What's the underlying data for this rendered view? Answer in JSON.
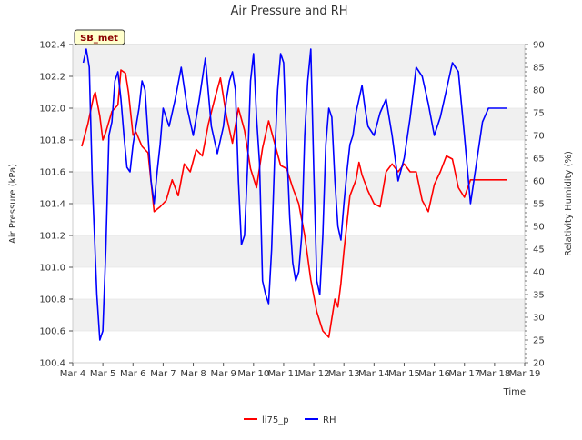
{
  "chart_data": {
    "type": "line",
    "title": "Air Pressure and RH",
    "tag_label": "SB_met",
    "xlabel": "Time",
    "ylabel_left": "Air Pressure (kPa)",
    "ylabel_right": "Relativity Humidity (%)",
    "x_ticks": [
      "Mar 4",
      "Mar 5",
      "Mar 6",
      "Mar 7",
      "Mar 8",
      "Mar 9",
      "Mar 10",
      "Mar 11",
      "Mar 12",
      "Mar 13",
      "Mar 14",
      "Mar 15",
      "Mar 16",
      "Mar 17",
      "Mar 18",
      "Mar 19"
    ],
    "xlim": [
      0,
      15
    ],
    "ylim_left": [
      100.4,
      102.4
    ],
    "ylim_right": [
      20,
      90
    ],
    "yticks_left": [
      "100.4",
      "100.6",
      "100.8",
      "101.0",
      "101.2",
      "101.4",
      "101.6",
      "101.8",
      "102.0",
      "102.2",
      "102.4"
    ],
    "yticks_right": [
      "20",
      "25",
      "30",
      "35",
      "40",
      "45",
      "50",
      "55",
      "60",
      "65",
      "70",
      "75",
      "80",
      "85",
      "90"
    ],
    "grid": "horizontal bands",
    "legend": "bottom-center",
    "colors": {
      "li75_p": "#ff0000",
      "RH": "#0000ff",
      "band": "#f0f0f0",
      "tag_bg": "#ffffcc"
    },
    "series": [
      {
        "name": "li75_p",
        "axis": "left",
        "x": [
          0.3,
          0.5,
          0.7,
          0.75,
          0.9,
          1.0,
          1.1,
          1.3,
          1.5,
          1.6,
          1.75,
          1.85,
          2.0,
          2.1,
          2.3,
          2.5,
          2.7,
          2.9,
          3.1,
          3.3,
          3.5,
          3.7,
          3.9,
          4.1,
          4.3,
          4.5,
          4.7,
          4.9,
          5.1,
          5.3,
          5.5,
          5.7,
          5.9,
          6.1,
          6.3,
          6.5,
          6.7,
          6.9,
          7.1,
          7.3,
          7.5,
          7.7,
          7.9,
          8.1,
          8.3,
          8.5,
          8.7,
          8.8,
          8.9,
          9.0,
          9.2,
          9.4,
          9.5,
          9.6,
          9.8,
          10.0,
          10.2,
          10.4,
          10.6,
          10.8,
          11.0,
          11.2,
          11.4,
          11.6,
          11.8,
          12.0,
          12.2,
          12.4,
          12.6,
          12.8,
          13.0,
          13.2,
          13.4,
          13.6,
          13.8,
          14.0,
          14.2,
          14.4
        ],
        "y": [
          101.76,
          101.9,
          102.08,
          102.1,
          101.95,
          101.8,
          101.85,
          101.98,
          102.02,
          102.24,
          102.22,
          102.1,
          101.83,
          101.85,
          101.76,
          101.72,
          101.35,
          101.38,
          101.42,
          101.55,
          101.45,
          101.65,
          101.6,
          101.74,
          101.7,
          101.9,
          102.05,
          102.19,
          101.95,
          101.78,
          102.0,
          101.86,
          101.62,
          101.5,
          101.75,
          101.92,
          101.78,
          101.64,
          101.62,
          101.5,
          101.4,
          101.2,
          100.92,
          100.72,
          100.6,
          100.56,
          100.8,
          100.75,
          100.9,
          101.1,
          101.45,
          101.55,
          101.66,
          101.58,
          101.48,
          101.4,
          101.38,
          101.6,
          101.65,
          101.6,
          101.65,
          101.6,
          101.6,
          101.42,
          101.35,
          101.52,
          101.6,
          101.7,
          101.68,
          101.5,
          101.44,
          101.55,
          101.55,
          101.55,
          101.55,
          101.55,
          101.55,
          101.55
        ]
      },
      {
        "name": "RH",
        "axis": "right",
        "x": [
          0.35,
          0.45,
          0.55,
          0.65,
          0.8,
          0.9,
          1.0,
          1.1,
          1.2,
          1.3,
          1.4,
          1.5,
          1.6,
          1.7,
          1.8,
          1.9,
          2.0,
          2.1,
          2.2,
          2.3,
          2.4,
          2.5,
          2.6,
          2.7,
          2.8,
          2.9,
          3.0,
          3.2,
          3.4,
          3.6,
          3.8,
          4.0,
          4.2,
          4.4,
          4.6,
          4.8,
          5.0,
          5.1,
          5.2,
          5.3,
          5.4,
          5.5,
          5.6,
          5.7,
          5.8,
          5.9,
          6.0,
          6.1,
          6.2,
          6.3,
          6.4,
          6.5,
          6.6,
          6.7,
          6.8,
          6.9,
          7.0,
          7.1,
          7.2,
          7.3,
          7.4,
          7.5,
          7.6,
          7.7,
          7.8,
          7.9,
          8.0,
          8.1,
          8.2,
          8.3,
          8.4,
          8.5,
          8.6,
          8.7,
          8.8,
          8.9,
          9.0,
          9.1,
          9.2,
          9.3,
          9.4,
          9.5,
          9.6,
          9.7,
          9.8,
          10.0,
          10.2,
          10.4,
          10.6,
          10.8,
          11.0,
          11.2,
          11.4,
          11.6,
          11.8,
          12.0,
          12.2,
          12.4,
          12.6,
          12.8,
          13.0,
          13.2,
          13.4,
          13.6,
          13.8,
          14.0,
          14.2,
          14.4
        ],
        "y": [
          86,
          89,
          85,
          60,
          35,
          25,
          27,
          45,
          70,
          73,
          82,
          84,
          78,
          70,
          63,
          62,
          68,
          72,
          76,
          82,
          80,
          70,
          60,
          55,
          62,
          68,
          76,
          72,
          78,
          85,
          76,
          70,
          78,
          87,
          72,
          66,
          72,
          78,
          82,
          84,
          80,
          60,
          46,
          48,
          63,
          82,
          88,
          74,
          64,
          38,
          35,
          33,
          45,
          65,
          80,
          88,
          86,
          68,
          52,
          42,
          38,
          40,
          48,
          70,
          82,
          89,
          62,
          38,
          35,
          48,
          68,
          76,
          74,
          60,
          50,
          47,
          55,
          62,
          68,
          70,
          75,
          78,
          81,
          76,
          72,
          70,
          75,
          78,
          70,
          60,
          65,
          74,
          85,
          83,
          77,
          70,
          74,
          80,
          86,
          84,
          70,
          55,
          64,
          73,
          76,
          76,
          76,
          76
        ]
      }
    ]
  }
}
